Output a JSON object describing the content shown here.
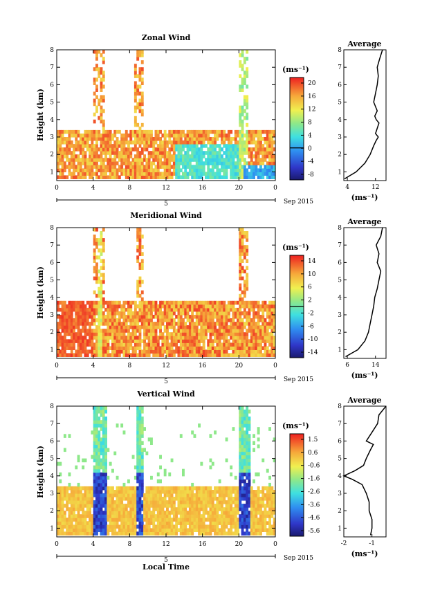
{
  "chart_data": [
    {
      "type": "heatmap",
      "title": "Zonal Wind",
      "ylabel": "Height (km)",
      "unit": "(ms⁻¹)",
      "xlim": [
        0,
        24
      ],
      "ylim": [
        0.5,
        8
      ],
      "x_ticks": [
        "0",
        "4",
        "8",
        "12",
        "16",
        "20",
        "0"
      ],
      "y_ticks": [
        "1",
        "2",
        "3",
        "4",
        "5",
        "6",
        "7",
        "8"
      ],
      "date_axis": {
        "day": "5",
        "month": "Sep 2015"
      },
      "colorbar": {
        "min": -10,
        "max": 22,
        "ticks": [
          "20",
          "16",
          "12",
          "8",
          "4",
          "0",
          "-4",
          "-8"
        ],
        "zero_line": 0
      },
      "average": {
        "title": "Average",
        "xlabel": "(ms⁻¹)",
        "x_ticks": [
          "4",
          "12"
        ],
        "xlim": [
          3,
          15
        ],
        "heights": [
          0.6,
          1.0,
          1.5,
          2.0,
          2.5,
          2.8,
          3.0,
          3.2,
          3.5,
          3.8,
          4.0,
          4.2,
          4.5,
          5.0,
          5.5,
          6.0,
          6.5,
          7.0,
          7.5,
          8.0
        ],
        "values": [
          3.2,
          6.5,
          9.0,
          10.5,
          11.5,
          12.2,
          12.8,
          12.0,
          12.5,
          13.0,
          12.2,
          11.8,
          12.5,
          11.5,
          12.0,
          12.5,
          12.8,
          12.5,
          13.2,
          14.0
        ]
      }
    },
    {
      "type": "heatmap",
      "title": "Meridional Wind",
      "ylabel": "Height (km)",
      "unit": "(ms⁻¹)",
      "xlim": [
        0,
        24
      ],
      "ylim": [
        0.5,
        8
      ],
      "x_ticks": [
        "0",
        "4",
        "8",
        "12",
        "16",
        "20",
        "0"
      ],
      "y_ticks": [
        "1",
        "2",
        "3",
        "4",
        "5",
        "6",
        "7",
        "8"
      ],
      "date_axis": {
        "day": "5",
        "month": "Sep 2015"
      },
      "colorbar": {
        "min": -16,
        "max": 16,
        "ticks": [
          "14",
          "10",
          "6",
          "2",
          "-2",
          "-6",
          "-10",
          "-14"
        ],
        "zero_line": 0
      },
      "average": {
        "title": "Average",
        "xlabel": "(ms⁻¹)",
        "x_ticks": [
          "6",
          "14"
        ],
        "xlim": [
          5,
          17
        ],
        "heights": [
          0.6,
          1.0,
          1.5,
          2.0,
          2.5,
          3.0,
          3.5,
          4.0,
          4.5,
          5.0,
          5.5,
          6.0,
          6.5,
          7.0,
          7.5,
          8.0
        ],
        "values": [
          5.5,
          9.0,
          11.0,
          12.0,
          12.5,
          13.0,
          13.5,
          13.8,
          14.5,
          15.0,
          15.5,
          14.5,
          15.0,
          14.2,
          15.5,
          16.0
        ]
      }
    },
    {
      "type": "heatmap",
      "title": "Vertical Wind",
      "ylabel": "Height (km)",
      "xlabel": "Local Time",
      "unit": "(ms⁻¹)",
      "xlim": [
        0,
        24
      ],
      "ylim": [
        0.5,
        8
      ],
      "x_ticks": [
        "0",
        "4",
        "8",
        "12",
        "16",
        "20",
        "0"
      ],
      "y_ticks": [
        "1",
        "2",
        "3",
        "4",
        "5",
        "6",
        "7",
        "8"
      ],
      "date_axis": {
        "day": "5",
        "month": "Sep 2015"
      },
      "colorbar": {
        "min": -6,
        "max": 2,
        "ticks": [
          "1.5",
          "0.6",
          "-0.6",
          "-1.6",
          "-2.6",
          "-3.6",
          "-4.6",
          "-5.6"
        ]
      },
      "average": {
        "title": "Average",
        "xlabel": "(ms⁻¹)",
        "x_ticks": [
          "-2",
          "-1"
        ],
        "xlim": [
          -2,
          -0.5
        ],
        "heights": [
          0.6,
          1.0,
          1.5,
          2.0,
          2.5,
          3.0,
          3.5,
          3.8,
          4.0,
          4.3,
          4.6,
          5.0,
          5.5,
          5.8,
          6.0,
          6.5,
          7.0,
          7.5,
          8.0
        ],
        "values": [
          -1.05,
          -1.0,
          -1.0,
          -1.1,
          -1.1,
          -1.2,
          -1.35,
          -1.7,
          -2.0,
          -1.6,
          -1.3,
          -1.2,
          -1.05,
          -0.95,
          -1.2,
          -1.0,
          -0.8,
          -0.75,
          -0.5
        ]
      }
    }
  ]
}
